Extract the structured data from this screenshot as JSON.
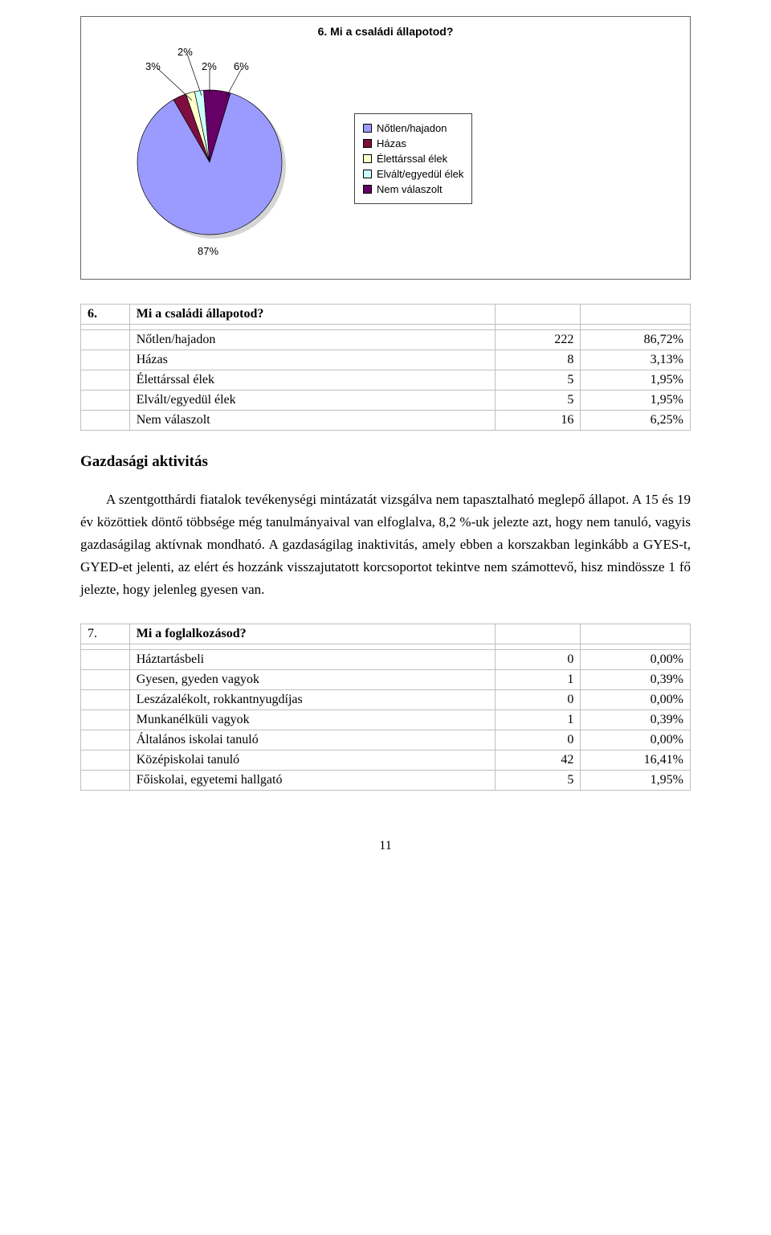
{
  "chart": {
    "type": "pie",
    "title": "6. Mi a családi állapotod?",
    "background_color": "#ffffff",
    "border_color": "#666666",
    "label_font_family": "Arial",
    "label_fontsize": 13,
    "slices": [
      {
        "label": "Nőtlen/hajadon",
        "percent": 87,
        "color": "#9b9bff",
        "display": "87%"
      },
      {
        "label": "Házas",
        "percent": 3,
        "color": "#7d0e3f",
        "display": "3%"
      },
      {
        "label": "Élettárssal élek",
        "percent": 2,
        "color": "#ffffcc",
        "display": "2%"
      },
      {
        "label": "Elvált/egyedül élek",
        "percent": 2,
        "color": "#ccffff",
        "display": "2%"
      },
      {
        "label": "Nem válaszolt",
        "percent": 6,
        "color": "#660066",
        "display": "6%"
      }
    ]
  },
  "table1": {
    "title_num": "6.",
    "title": "Mi a családi állapotod?",
    "rows": [
      {
        "label": "Nőtlen/hajadon",
        "count": "222",
        "pct": "86,72%"
      },
      {
        "label": "Házas",
        "count": "8",
        "pct": "3,13%"
      },
      {
        "label": "Élettárssal élek",
        "count": "5",
        "pct": "1,95%"
      },
      {
        "label": "Elvált/egyedül élek",
        "count": "5",
        "pct": "1,95%"
      },
      {
        "label": "Nem válaszolt",
        "count": "16",
        "pct": "6,25%"
      }
    ]
  },
  "section": {
    "heading": "Gazdasági aktivitás",
    "paragraph": "A szentgotthárdi fiatalok tevékenységi mintázatát vizsgálva nem tapasztalható meglepő állapot. A 15 és 19 év közöttiek döntő többsége még tanulmányaival van elfoglalva, 8,2 %-uk jelezte azt, hogy nem tanuló, vagyis gazdaságilag aktívnak mondható. A gazdaságilag inaktivitás, amely ebben a korszakban leginkább a GYES-t, GYED-et jelenti, az elért és hozzánk visszajutatott korcsoportot tekintve nem számottevő, hisz mindössze 1 fő jelezte, hogy jelenleg gyesen van."
  },
  "table2": {
    "title_num": "7.",
    "title": "Mi a foglalkozásod?",
    "rows": [
      {
        "label": "Háztartásbeli",
        "count": "0",
        "pct": "0,00%"
      },
      {
        "label": "Gyesen, gyeden vagyok",
        "count": "1",
        "pct": "0,39%"
      },
      {
        "label": "Leszázalékolt, rokkantnyugdíjas",
        "count": "0",
        "pct": "0,00%"
      },
      {
        "label": "Munkanélküli vagyok",
        "count": "1",
        "pct": "0,39%"
      },
      {
        "label": "Általános iskolai tanuló",
        "count": "0",
        "pct": "0,00%"
      },
      {
        "label": "Középiskolai tanuló",
        "count": "42",
        "pct": "16,41%"
      },
      {
        "label": "Főiskolai, egyetemi hallgató",
        "count": "5",
        "pct": "1,95%"
      }
    ]
  },
  "page_number": "11"
}
